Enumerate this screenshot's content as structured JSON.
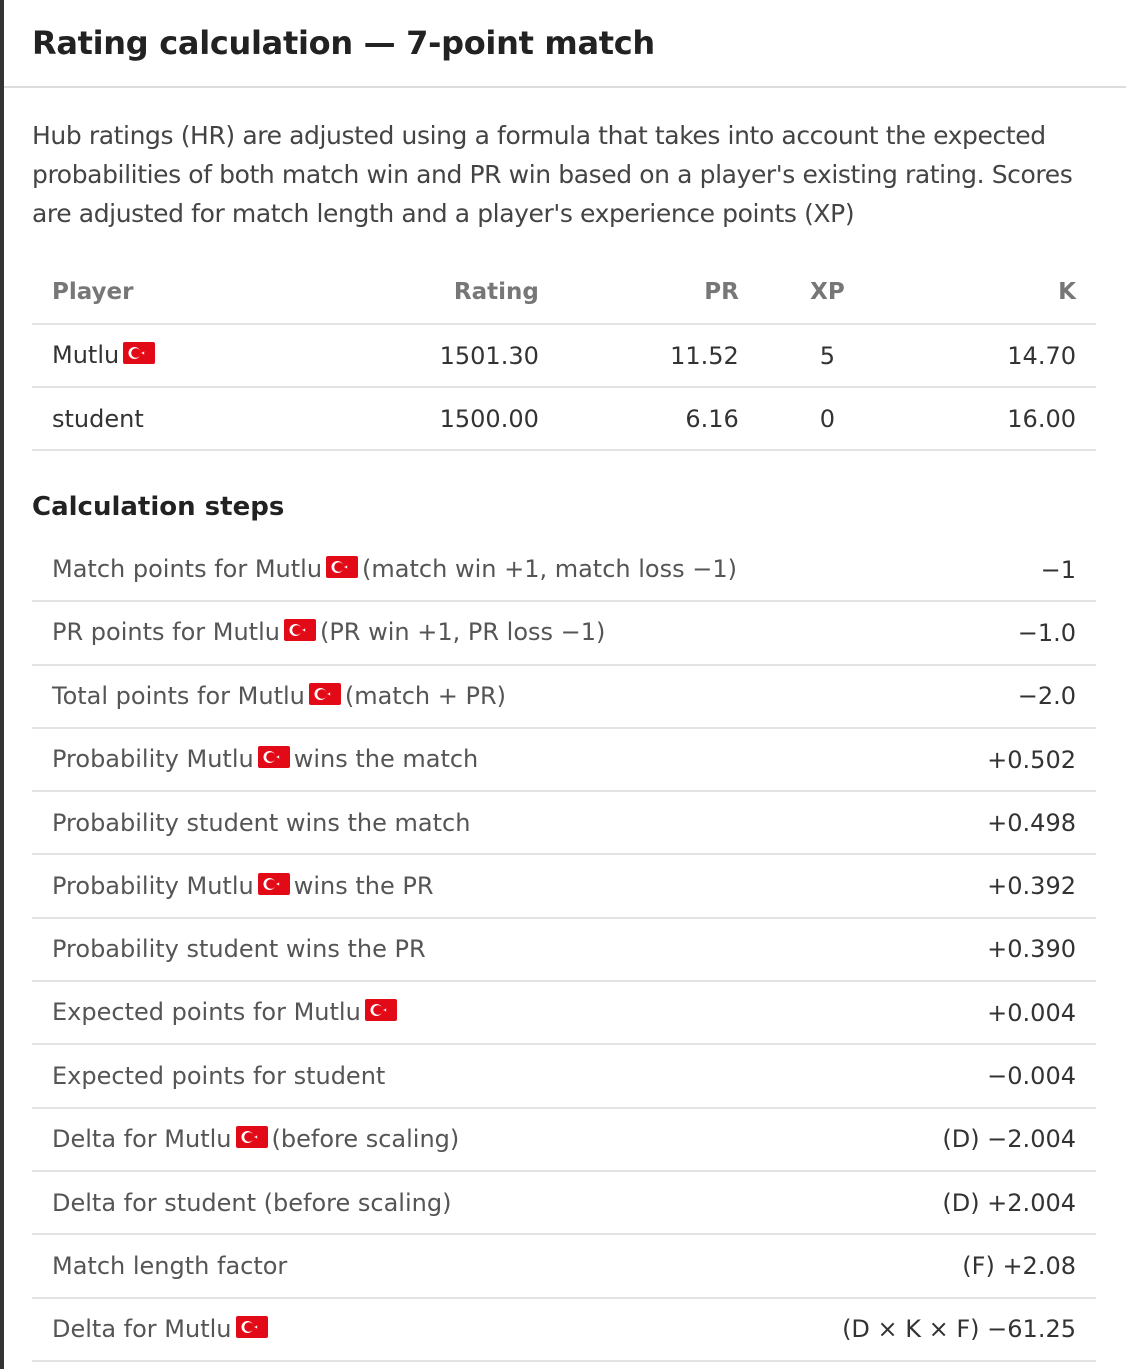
{
  "header": {
    "title": "Rating calculation — 7-point match"
  },
  "intro": "Hub ratings (HR) are adjusted using a formula that takes into account the expected probabilities of both match win and PR win based on a player's existing rating. Scores are adjusted for match length and a player's experience points (XP)",
  "players": {
    "columns": [
      "Player",
      "Rating",
      "PR",
      "XP",
      "K"
    ],
    "rows": [
      {
        "name": "Mutlu",
        "flag": true,
        "cells": [
          "1501.30",
          "11.52",
          "5",
          "14.70"
        ]
      },
      {
        "name": "student",
        "flag": false,
        "cells": [
          "1500.00",
          "6.16",
          "0",
          "16.00"
        ]
      }
    ]
  },
  "steps": {
    "title": "Calculation steps",
    "rows": [
      {
        "label": "Match points for Mutlu",
        "flag": true,
        "suffix": "(match win +1, match loss −1)",
        "value": "−1"
      },
      {
        "label": "PR points for Mutlu",
        "flag": true,
        "suffix": "(PR win +1, PR loss −1)",
        "value": "−1.0"
      },
      {
        "label": "Total points for Mutlu",
        "flag": true,
        "suffix": "(match + PR)",
        "value": "−2.0"
      },
      {
        "label": "Probability Mutlu",
        "flag": true,
        "suffix": "wins the match",
        "value": "+0.502"
      },
      {
        "label": "Probability student wins the match",
        "flag": false,
        "value": "+0.498"
      },
      {
        "label": "Probability Mutlu",
        "flag": true,
        "suffix": "wins the PR",
        "value": "+0.392"
      },
      {
        "label": "Probability student wins the PR",
        "flag": false,
        "value": "+0.390"
      },
      {
        "label": "Expected points for Mutlu",
        "flag": true,
        "value": "+0.004"
      },
      {
        "label": "Expected points for student",
        "flag": false,
        "value": "−0.004"
      },
      {
        "label": "Delta for Mutlu",
        "flag": true,
        "suffix": "(before scaling)",
        "value": "(D) −2.004"
      },
      {
        "label": "Delta for student (before scaling)",
        "flag": false,
        "value": "(D) +2.004"
      },
      {
        "label": "Match length factor",
        "flag": false,
        "value": "(F) +2.08"
      },
      {
        "label": "Delta for Mutlu",
        "flag": true,
        "value": "(D × K × F) −61.25"
      }
    ]
  }
}
